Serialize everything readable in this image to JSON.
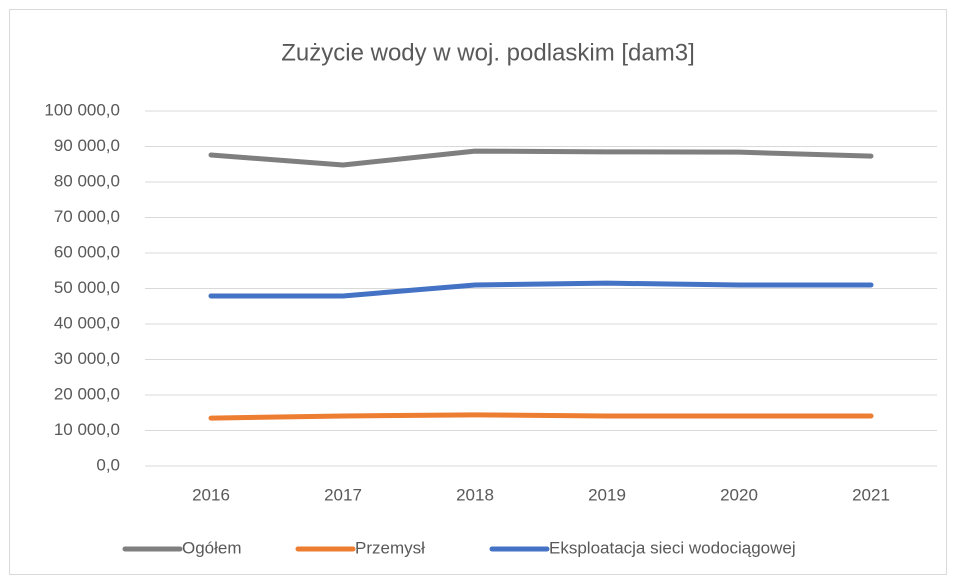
{
  "chart_data": {
    "type": "line",
    "title": "Zużycie wody w woj. podlaskim [dam3]",
    "categories": [
      "2016",
      "2017",
      "2018",
      "2019",
      "2020",
      "2021"
    ],
    "series": [
      {
        "name": "Ogółem",
        "color": "#7f7f7f",
        "values": [
          87600,
          84800,
          88700,
          88500,
          88400,
          87300
        ]
      },
      {
        "name": "Przemysł",
        "color": "#ed7d31",
        "values": [
          13500,
          14100,
          14400,
          14100,
          14100,
          14100
        ]
      },
      {
        "name": "Eksploatacja sieci wodociągowej",
        "color": "#4472c4",
        "values": [
          47900,
          47900,
          51000,
          51500,
          51000,
          51000
        ]
      }
    ],
    "ylim": [
      0,
      100000
    ],
    "yticks": [
      {
        "value": 0,
        "label": "0,0"
      },
      {
        "value": 10000,
        "label": "10 000,0"
      },
      {
        "value": 20000,
        "label": "20 000,0"
      },
      {
        "value": 30000,
        "label": "30 000,0"
      },
      {
        "value": 40000,
        "label": "40 000,0"
      },
      {
        "value": 50000,
        "label": "50 000,0"
      },
      {
        "value": 60000,
        "label": "60 000,0"
      },
      {
        "value": 70000,
        "label": "70 000,0"
      },
      {
        "value": 80000,
        "label": "80 000,0"
      },
      {
        "value": 90000,
        "label": "90 000,0"
      },
      {
        "value": 100000,
        "label": "100 000,0"
      }
    ],
    "grid": true,
    "legend": "bottom"
  }
}
